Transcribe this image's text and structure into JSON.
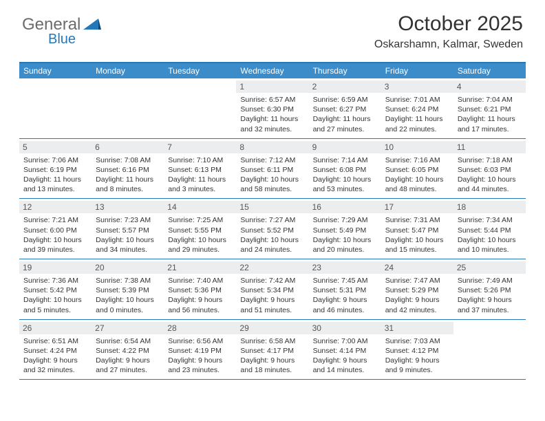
{
  "logo": {
    "general": "General",
    "blue": "Blue"
  },
  "header": {
    "title": "October 2025",
    "location": "Oskarshamn, Kalmar, Sweden"
  },
  "colors": {
    "header_bar": "#3b8cc9",
    "border": "#2578b8",
    "daynum_bg": "#ebedef",
    "text": "#333333",
    "logo_gray": "#6b6b6b",
    "logo_blue": "#2578b8",
    "background": "#ffffff"
  },
  "typography": {
    "title_fontsize": 30,
    "subtitle_fontsize": 16,
    "dayheader_fontsize": 12,
    "daynum_fontsize": 12,
    "body_fontsize": 10.5
  },
  "dayNames": [
    "Sunday",
    "Monday",
    "Tuesday",
    "Wednesday",
    "Thursday",
    "Friday",
    "Saturday"
  ],
  "weeks": [
    [
      {
        "day": "",
        "sunrise": "",
        "sunset": "",
        "daylight1": "",
        "daylight2": ""
      },
      {
        "day": "",
        "sunrise": "",
        "sunset": "",
        "daylight1": "",
        "daylight2": ""
      },
      {
        "day": "",
        "sunrise": "",
        "sunset": "",
        "daylight1": "",
        "daylight2": ""
      },
      {
        "day": "1",
        "sunrise": "Sunrise: 6:57 AM",
        "sunset": "Sunset: 6:30 PM",
        "daylight1": "Daylight: 11 hours",
        "daylight2": "and 32 minutes."
      },
      {
        "day": "2",
        "sunrise": "Sunrise: 6:59 AM",
        "sunset": "Sunset: 6:27 PM",
        "daylight1": "Daylight: 11 hours",
        "daylight2": "and 27 minutes."
      },
      {
        "day": "3",
        "sunrise": "Sunrise: 7:01 AM",
        "sunset": "Sunset: 6:24 PM",
        "daylight1": "Daylight: 11 hours",
        "daylight2": "and 22 minutes."
      },
      {
        "day": "4",
        "sunrise": "Sunrise: 7:04 AM",
        "sunset": "Sunset: 6:21 PM",
        "daylight1": "Daylight: 11 hours",
        "daylight2": "and 17 minutes."
      }
    ],
    [
      {
        "day": "5",
        "sunrise": "Sunrise: 7:06 AM",
        "sunset": "Sunset: 6:19 PM",
        "daylight1": "Daylight: 11 hours",
        "daylight2": "and 13 minutes."
      },
      {
        "day": "6",
        "sunrise": "Sunrise: 7:08 AM",
        "sunset": "Sunset: 6:16 PM",
        "daylight1": "Daylight: 11 hours",
        "daylight2": "and 8 minutes."
      },
      {
        "day": "7",
        "sunrise": "Sunrise: 7:10 AM",
        "sunset": "Sunset: 6:13 PM",
        "daylight1": "Daylight: 11 hours",
        "daylight2": "and 3 minutes."
      },
      {
        "day": "8",
        "sunrise": "Sunrise: 7:12 AM",
        "sunset": "Sunset: 6:11 PM",
        "daylight1": "Daylight: 10 hours",
        "daylight2": "and 58 minutes."
      },
      {
        "day": "9",
        "sunrise": "Sunrise: 7:14 AM",
        "sunset": "Sunset: 6:08 PM",
        "daylight1": "Daylight: 10 hours",
        "daylight2": "and 53 minutes."
      },
      {
        "day": "10",
        "sunrise": "Sunrise: 7:16 AM",
        "sunset": "Sunset: 6:05 PM",
        "daylight1": "Daylight: 10 hours",
        "daylight2": "and 48 minutes."
      },
      {
        "day": "11",
        "sunrise": "Sunrise: 7:18 AM",
        "sunset": "Sunset: 6:03 PM",
        "daylight1": "Daylight: 10 hours",
        "daylight2": "and 44 minutes."
      }
    ],
    [
      {
        "day": "12",
        "sunrise": "Sunrise: 7:21 AM",
        "sunset": "Sunset: 6:00 PM",
        "daylight1": "Daylight: 10 hours",
        "daylight2": "and 39 minutes."
      },
      {
        "day": "13",
        "sunrise": "Sunrise: 7:23 AM",
        "sunset": "Sunset: 5:57 PM",
        "daylight1": "Daylight: 10 hours",
        "daylight2": "and 34 minutes."
      },
      {
        "day": "14",
        "sunrise": "Sunrise: 7:25 AM",
        "sunset": "Sunset: 5:55 PM",
        "daylight1": "Daylight: 10 hours",
        "daylight2": "and 29 minutes."
      },
      {
        "day": "15",
        "sunrise": "Sunrise: 7:27 AM",
        "sunset": "Sunset: 5:52 PM",
        "daylight1": "Daylight: 10 hours",
        "daylight2": "and 24 minutes."
      },
      {
        "day": "16",
        "sunrise": "Sunrise: 7:29 AM",
        "sunset": "Sunset: 5:49 PM",
        "daylight1": "Daylight: 10 hours",
        "daylight2": "and 20 minutes."
      },
      {
        "day": "17",
        "sunrise": "Sunrise: 7:31 AM",
        "sunset": "Sunset: 5:47 PM",
        "daylight1": "Daylight: 10 hours",
        "daylight2": "and 15 minutes."
      },
      {
        "day": "18",
        "sunrise": "Sunrise: 7:34 AM",
        "sunset": "Sunset: 5:44 PM",
        "daylight1": "Daylight: 10 hours",
        "daylight2": "and 10 minutes."
      }
    ],
    [
      {
        "day": "19",
        "sunrise": "Sunrise: 7:36 AM",
        "sunset": "Sunset: 5:42 PM",
        "daylight1": "Daylight: 10 hours",
        "daylight2": "and 5 minutes."
      },
      {
        "day": "20",
        "sunrise": "Sunrise: 7:38 AM",
        "sunset": "Sunset: 5:39 PM",
        "daylight1": "Daylight: 10 hours",
        "daylight2": "and 0 minutes."
      },
      {
        "day": "21",
        "sunrise": "Sunrise: 7:40 AM",
        "sunset": "Sunset: 5:36 PM",
        "daylight1": "Daylight: 9 hours",
        "daylight2": "and 56 minutes."
      },
      {
        "day": "22",
        "sunrise": "Sunrise: 7:42 AM",
        "sunset": "Sunset: 5:34 PM",
        "daylight1": "Daylight: 9 hours",
        "daylight2": "and 51 minutes."
      },
      {
        "day": "23",
        "sunrise": "Sunrise: 7:45 AM",
        "sunset": "Sunset: 5:31 PM",
        "daylight1": "Daylight: 9 hours",
        "daylight2": "and 46 minutes."
      },
      {
        "day": "24",
        "sunrise": "Sunrise: 7:47 AM",
        "sunset": "Sunset: 5:29 PM",
        "daylight1": "Daylight: 9 hours",
        "daylight2": "and 42 minutes."
      },
      {
        "day": "25",
        "sunrise": "Sunrise: 7:49 AM",
        "sunset": "Sunset: 5:26 PM",
        "daylight1": "Daylight: 9 hours",
        "daylight2": "and 37 minutes."
      }
    ],
    [
      {
        "day": "26",
        "sunrise": "Sunrise: 6:51 AM",
        "sunset": "Sunset: 4:24 PM",
        "daylight1": "Daylight: 9 hours",
        "daylight2": "and 32 minutes."
      },
      {
        "day": "27",
        "sunrise": "Sunrise: 6:54 AM",
        "sunset": "Sunset: 4:22 PM",
        "daylight1": "Daylight: 9 hours",
        "daylight2": "and 27 minutes."
      },
      {
        "day": "28",
        "sunrise": "Sunrise: 6:56 AM",
        "sunset": "Sunset: 4:19 PM",
        "daylight1": "Daylight: 9 hours",
        "daylight2": "and 23 minutes."
      },
      {
        "day": "29",
        "sunrise": "Sunrise: 6:58 AM",
        "sunset": "Sunset: 4:17 PM",
        "daylight1": "Daylight: 9 hours",
        "daylight2": "and 18 minutes."
      },
      {
        "day": "30",
        "sunrise": "Sunrise: 7:00 AM",
        "sunset": "Sunset: 4:14 PM",
        "daylight1": "Daylight: 9 hours",
        "daylight2": "and 14 minutes."
      },
      {
        "day": "31",
        "sunrise": "Sunrise: 7:03 AM",
        "sunset": "Sunset: 4:12 PM",
        "daylight1": "Daylight: 9 hours",
        "daylight2": "and 9 minutes."
      },
      {
        "day": "",
        "sunrise": "",
        "sunset": "",
        "daylight1": "",
        "daylight2": ""
      }
    ]
  ]
}
